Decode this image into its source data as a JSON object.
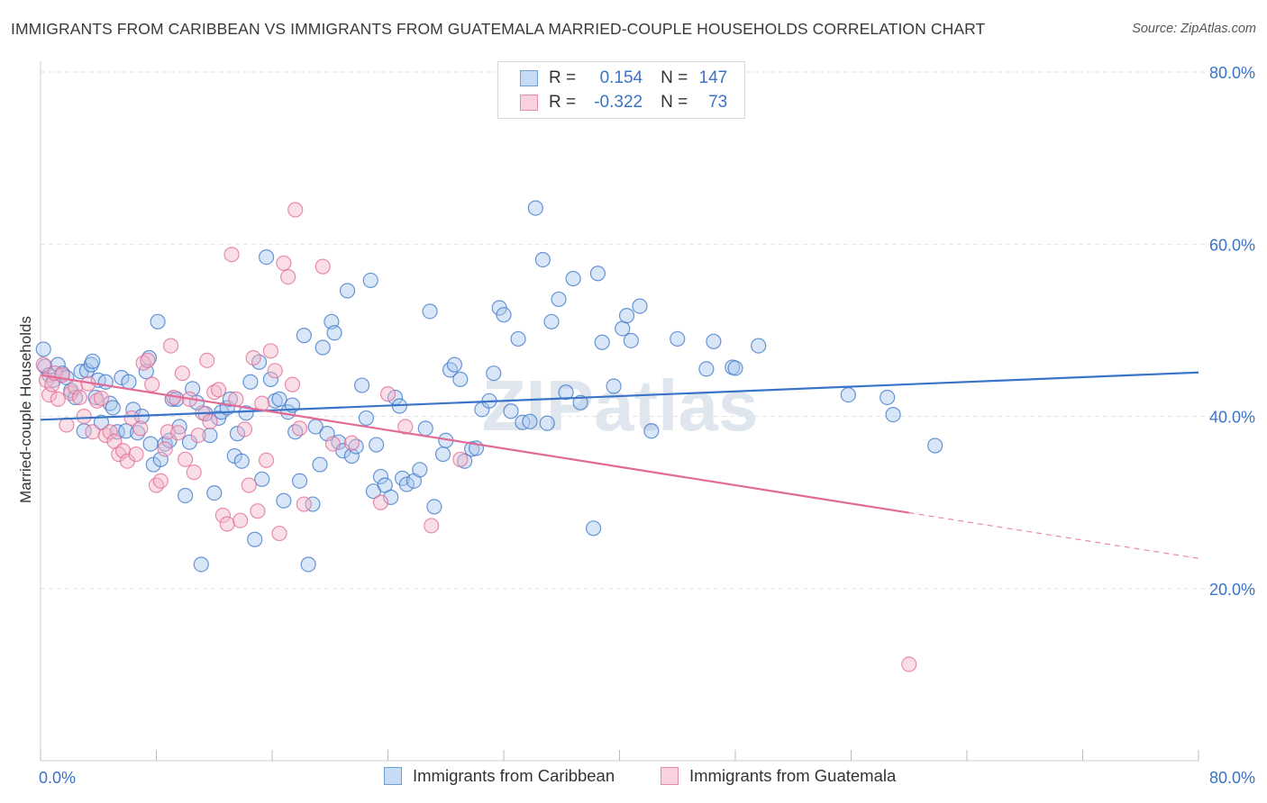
{
  "title": "IMMIGRANTS FROM CARIBBEAN VS IMMIGRANTS FROM GUATEMALA MARRIED-COUPLE HOUSEHOLDS CORRELATION CHART",
  "source": "Source: ZipAtlas.com",
  "watermark": "ZIPatlas",
  "legend_stats": [
    {
      "r_label": "R =",
      "r_value": "0.154",
      "n_label": "N =",
      "n_value": "147",
      "color": "#a8c8ee"
    },
    {
      "r_label": "R =",
      "r_value": "-0.322",
      "n_label": "N =",
      "n_value": "73",
      "color": "#f4b6c8"
    }
  ],
  "chart_data": {
    "type": "scatter",
    "title": "IMMIGRANTS FROM CARIBBEAN VS IMMIGRANTS FROM GUATEMALA MARRIED-COUPLE HOUSEHOLDS CORRELATION CHART",
    "xlabel": "",
    "ylabel": "Married-couple Households",
    "xlim": [
      0,
      80
    ],
    "ylim": [
      0,
      80
    ],
    "x_tick_labels": [
      "0.0%",
      "80.0%"
    ],
    "y_tick_labels": [
      "20.0%",
      "40.0%",
      "60.0%",
      "80.0%"
    ],
    "y_ticks": [
      20,
      40,
      60,
      80
    ],
    "grid": true,
    "legend_position": "bottom",
    "series": [
      {
        "name": "Immigrants from Caribbean",
        "color": "#3a74c8",
        "fill": "#a8c8ee",
        "trend": {
          "x": [
            0,
            80
          ],
          "y": [
            39.6,
            45.1
          ]
        },
        "points": [
          [
            0.2,
            47.8
          ],
          [
            0.3,
            45.8
          ],
          [
            0.6,
            44.8
          ],
          [
            0.9,
            44.2
          ],
          [
            1.2,
            46.0
          ],
          [
            1.5,
            45.0
          ],
          [
            1.8,
            44.5
          ],
          [
            2.1,
            43.0
          ],
          [
            2.4,
            42.2
          ],
          [
            2.8,
            45.2
          ],
          [
            3.0,
            38.3
          ],
          [
            3.2,
            45.3
          ],
          [
            3.5,
            46.0
          ],
          [
            3.6,
            46.4
          ],
          [
            3.8,
            42.2
          ],
          [
            4.0,
            44.2
          ],
          [
            4.2,
            39.3
          ],
          [
            4.5,
            44.0
          ],
          [
            4.8,
            41.5
          ],
          [
            5.0,
            41.0
          ],
          [
            5.3,
            38.2
          ],
          [
            5.6,
            44.5
          ],
          [
            5.9,
            38.3
          ],
          [
            6.1,
            44.0
          ],
          [
            6.4,
            40.8
          ],
          [
            6.7,
            38.1
          ],
          [
            7.0,
            40.0
          ],
          [
            7.3,
            45.2
          ],
          [
            7.5,
            46.8
          ],
          [
            7.6,
            36.8
          ],
          [
            7.8,
            34.4
          ],
          [
            8.1,
            51.0
          ],
          [
            8.3,
            35.0
          ],
          [
            8.6,
            36.8
          ],
          [
            8.9,
            37.2
          ],
          [
            9.1,
            42.0
          ],
          [
            9.4,
            42.0
          ],
          [
            9.6,
            38.8
          ],
          [
            10.0,
            30.8
          ],
          [
            10.3,
            37.0
          ],
          [
            10.5,
            43.2
          ],
          [
            10.8,
            41.6
          ],
          [
            11.1,
            22.8
          ],
          [
            11.4,
            40.3
          ],
          [
            11.7,
            37.8
          ],
          [
            12.0,
            31.1
          ],
          [
            12.3,
            39.8
          ],
          [
            12.5,
            40.5
          ],
          [
            12.9,
            41.0
          ],
          [
            13.1,
            42.0
          ],
          [
            13.4,
            35.4
          ],
          [
            13.6,
            38.0
          ],
          [
            13.9,
            34.8
          ],
          [
            14.2,
            40.4
          ],
          [
            14.5,
            44.0
          ],
          [
            14.8,
            25.7
          ],
          [
            15.1,
            46.3
          ],
          [
            15.3,
            32.7
          ],
          [
            15.6,
            58.5
          ],
          [
            15.9,
            44.3
          ],
          [
            16.2,
            41.8
          ],
          [
            16.5,
            42.0
          ],
          [
            16.8,
            30.2
          ],
          [
            17.1,
            40.5
          ],
          [
            17.4,
            41.3
          ],
          [
            17.6,
            38.2
          ],
          [
            17.9,
            32.5
          ],
          [
            18.2,
            49.4
          ],
          [
            18.5,
            22.8
          ],
          [
            18.8,
            29.8
          ],
          [
            19.0,
            38.8
          ],
          [
            19.3,
            34.4
          ],
          [
            19.5,
            48.0
          ],
          [
            19.8,
            38.0
          ],
          [
            20.1,
            51.0
          ],
          [
            20.3,
            49.7
          ],
          [
            20.6,
            37.0
          ],
          [
            20.9,
            36.0
          ],
          [
            21.2,
            54.6
          ],
          [
            21.5,
            35.4
          ],
          [
            21.8,
            36.5
          ],
          [
            22.2,
            43.6
          ],
          [
            22.5,
            39.8
          ],
          [
            22.8,
            55.8
          ],
          [
            23.0,
            31.3
          ],
          [
            23.2,
            36.7
          ],
          [
            23.5,
            33.0
          ],
          [
            23.8,
            32.0
          ],
          [
            24.2,
            30.6
          ],
          [
            24.5,
            42.2
          ],
          [
            24.8,
            41.2
          ],
          [
            25.0,
            32.8
          ],
          [
            25.3,
            32.1
          ],
          [
            25.8,
            32.5
          ],
          [
            26.2,
            33.8
          ],
          [
            26.6,
            38.6
          ],
          [
            26.9,
            52.2
          ],
          [
            27.2,
            29.5
          ],
          [
            27.8,
            35.6
          ],
          [
            28.0,
            37.2
          ],
          [
            28.3,
            45.4
          ],
          [
            28.6,
            46.0
          ],
          [
            29.0,
            44.3
          ],
          [
            29.3,
            34.8
          ],
          [
            29.8,
            36.2
          ],
          [
            30.1,
            36.3
          ],
          [
            30.5,
            40.8
          ],
          [
            31.0,
            41.8
          ],
          [
            31.3,
            45.0
          ],
          [
            31.7,
            52.6
          ],
          [
            32.0,
            51.8
          ],
          [
            32.5,
            40.6
          ],
          [
            33.0,
            49.0
          ],
          [
            33.3,
            39.3
          ],
          [
            33.8,
            39.4
          ],
          [
            34.2,
            64.2
          ],
          [
            34.7,
            58.2
          ],
          [
            35.0,
            39.2
          ],
          [
            35.3,
            51.0
          ],
          [
            35.8,
            53.6
          ],
          [
            36.3,
            42.8
          ],
          [
            36.8,
            56.0
          ],
          [
            37.3,
            41.6
          ],
          [
            38.2,
            27.0
          ],
          [
            38.5,
            56.6
          ],
          [
            38.8,
            48.6
          ],
          [
            39.6,
            43.5
          ],
          [
            40.2,
            50.2
          ],
          [
            40.5,
            51.7
          ],
          [
            40.8,
            48.8
          ],
          [
            41.4,
            52.8
          ],
          [
            42.2,
            38.3
          ],
          [
            44.0,
            49.0
          ],
          [
            46.0,
            45.5
          ],
          [
            46.5,
            48.7
          ],
          [
            47.8,
            45.7
          ],
          [
            48.0,
            45.6
          ],
          [
            49.6,
            48.2
          ],
          [
            55.8,
            42.5
          ],
          [
            58.5,
            42.2
          ],
          [
            58.9,
            40.2
          ],
          [
            61.8,
            36.6
          ]
        ]
      },
      {
        "name": "Immigrants from Guatemala",
        "color": "#e26a95",
        "fill": "#f4b6c8",
        "trend": {
          "x": [
            0,
            60
          ],
          "y": [
            44.8,
            28.8
          ]
        },
        "trend_extrapolated": {
          "x": [
            60,
            80
          ],
          "y": [
            28.8,
            23.5
          ]
        },
        "points": [
          [
            0.2,
            46.0
          ],
          [
            0.4,
            44.2
          ],
          [
            0.6,
            42.5
          ],
          [
            0.8,
            43.7
          ],
          [
            1.0,
            45.0
          ],
          [
            1.2,
            42.0
          ],
          [
            1.5,
            44.8
          ],
          [
            1.8,
            39.0
          ],
          [
            2.1,
            42.7
          ],
          [
            2.4,
            43.4
          ],
          [
            2.7,
            42.2
          ],
          [
            3.0,
            40.0
          ],
          [
            3.3,
            43.8
          ],
          [
            3.6,
            38.2
          ],
          [
            3.9,
            41.8
          ],
          [
            4.2,
            42.1
          ],
          [
            4.5,
            37.8
          ],
          [
            4.8,
            38.2
          ],
          [
            5.1,
            37.1
          ],
          [
            5.4,
            35.6
          ],
          [
            5.7,
            36.0
          ],
          [
            6.0,
            34.8
          ],
          [
            6.3,
            39.8
          ],
          [
            6.6,
            35.6
          ],
          [
            6.9,
            38.6
          ],
          [
            7.1,
            46.2
          ],
          [
            7.4,
            46.5
          ],
          [
            7.7,
            43.7
          ],
          [
            8.0,
            32.0
          ],
          [
            8.3,
            32.5
          ],
          [
            8.6,
            36.2
          ],
          [
            8.8,
            38.2
          ],
          [
            9.0,
            48.2
          ],
          [
            9.2,
            42.2
          ],
          [
            9.5,
            38.1
          ],
          [
            9.8,
            45.0
          ],
          [
            10.0,
            35.0
          ],
          [
            10.3,
            42.0
          ],
          [
            10.6,
            33.5
          ],
          [
            10.9,
            37.8
          ],
          [
            11.2,
            40.4
          ],
          [
            11.5,
            46.5
          ],
          [
            11.7,
            39.4
          ],
          [
            12.0,
            42.8
          ],
          [
            12.3,
            43.1
          ],
          [
            12.6,
            28.5
          ],
          [
            12.9,
            27.5
          ],
          [
            13.2,
            58.8
          ],
          [
            13.5,
            42.0
          ],
          [
            13.8,
            27.9
          ],
          [
            14.1,
            38.5
          ],
          [
            14.4,
            32.0
          ],
          [
            14.7,
            46.8
          ],
          [
            15.0,
            29.0
          ],
          [
            15.3,
            41.5
          ],
          [
            15.6,
            34.9
          ],
          [
            15.9,
            47.6
          ],
          [
            16.2,
            45.3
          ],
          [
            16.5,
            26.4
          ],
          [
            16.8,
            57.8
          ],
          [
            17.1,
            56.2
          ],
          [
            17.4,
            43.7
          ],
          [
            17.6,
            64.0
          ],
          [
            17.9,
            38.6
          ],
          [
            18.2,
            29.8
          ],
          [
            19.5,
            57.4
          ],
          [
            20.2,
            36.8
          ],
          [
            21.5,
            36.9
          ],
          [
            23.5,
            30.0
          ],
          [
            24.0,
            42.6
          ],
          [
            25.2,
            38.8
          ],
          [
            27.0,
            27.3
          ],
          [
            29.0,
            35.0
          ],
          [
            60.0,
            11.2
          ]
        ]
      }
    ]
  }
}
